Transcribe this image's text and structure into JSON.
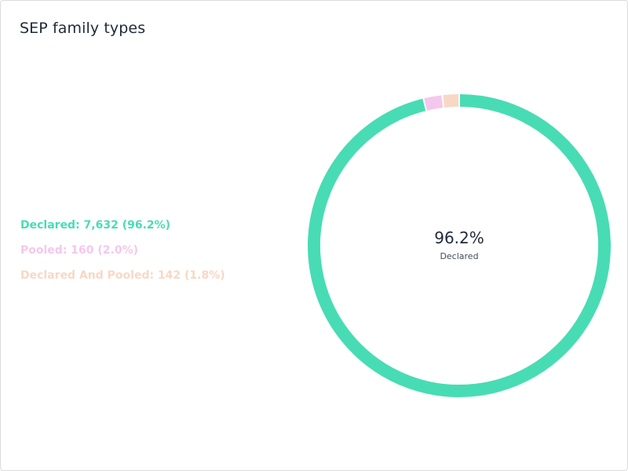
{
  "title": "SEP family types",
  "colors": {
    "declared": "#48dcb4",
    "pooled": "#f4c8ec",
    "declared_and_pooled": "#f8d8c4"
  },
  "legend": [
    {
      "text": "Declared: 7,632 (96.2%)",
      "color": "#48dcb4"
    },
    {
      "text": "Pooled: 160 (2.0%)",
      "color": "#f4c8ec"
    },
    {
      "text": "Declared And Pooled: 142 (1.8%)",
      "color": "#f8d8c4"
    }
  ],
  "center": {
    "value": "96.2%",
    "label": "Declared"
  },
  "chart_data": {
    "type": "pie",
    "title": "SEP family types",
    "categories": [
      "Declared",
      "Pooled",
      "Declared And Pooled"
    ],
    "values": [
      7632,
      160,
      142
    ],
    "percentages": [
      96.2,
      2.0,
      1.8
    ],
    "colors": [
      "#48dcb4",
      "#f4c8ec",
      "#f8d8c4"
    ],
    "legend_position": "left"
  }
}
